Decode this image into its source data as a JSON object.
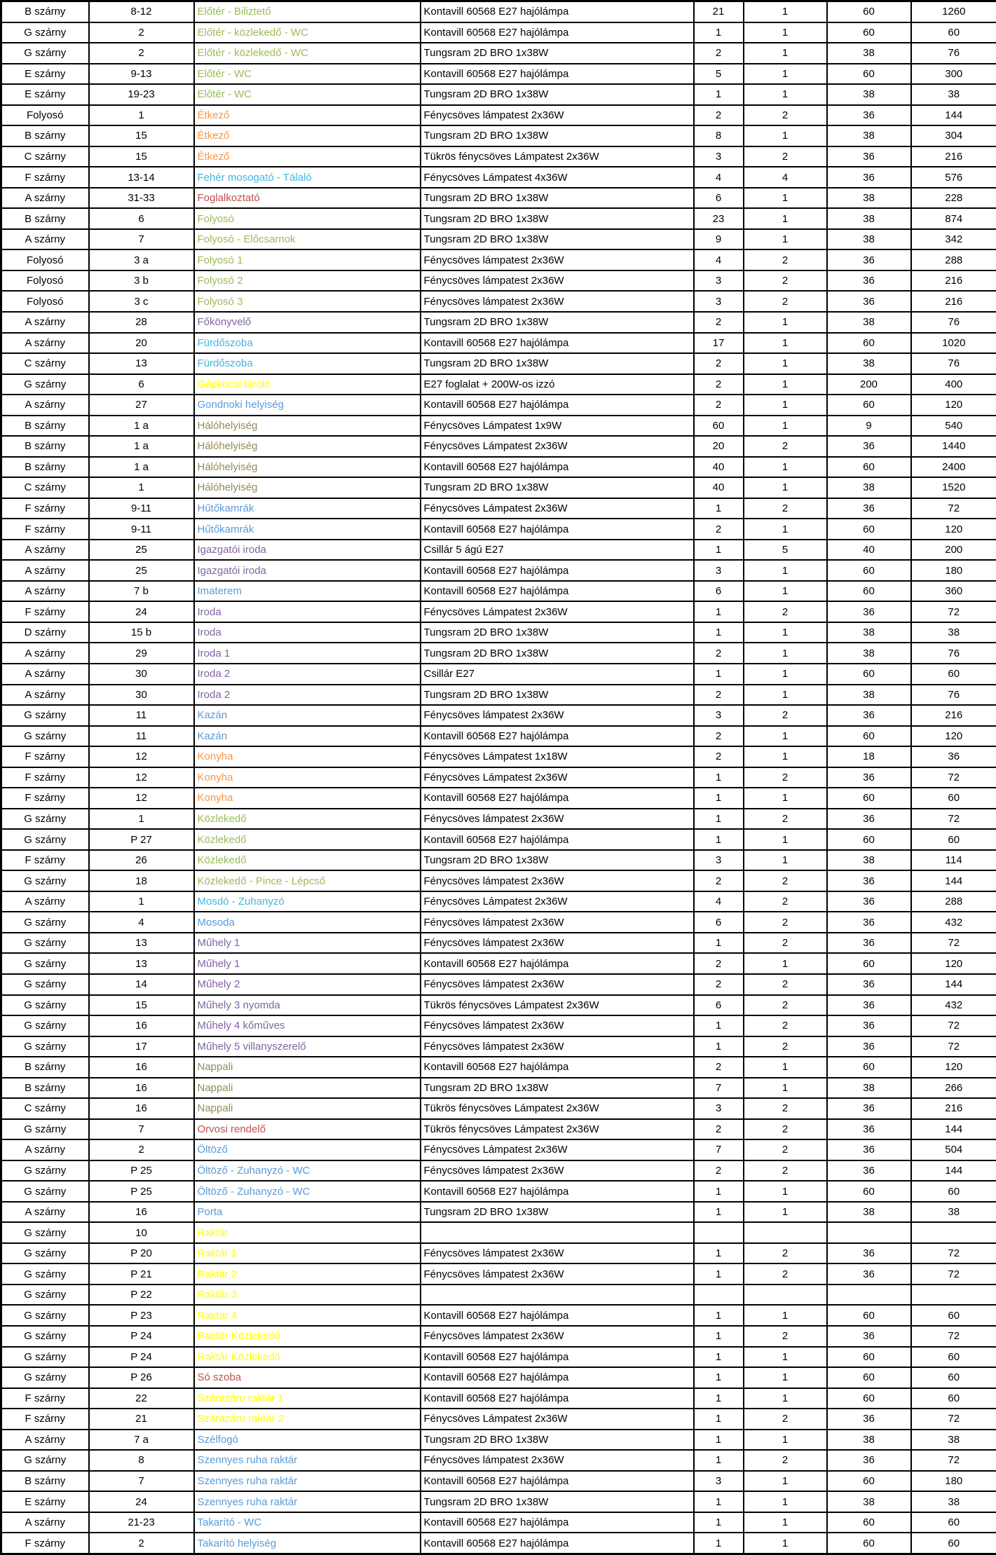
{
  "table": {
    "description": "Lighting inventory spreadsheet (Hungarian), no header row visible",
    "row_fields": [
      "wing",
      "room_number",
      "room_name",
      "room_name_color",
      "lamp_type",
      "fixture_count",
      "lamps_per_fixture",
      "watts_per_lamp",
      "total_watts"
    ],
    "colors": {
      "green": "#9BBB59",
      "orange": "#F79646",
      "cyan": "#45B5DE",
      "blue": "#5B9BD5",
      "purple": "#8064A2",
      "red": "#C0504D",
      "yellow": "#FFFF00",
      "tan": "#948A54",
      "grid_border": "#000000",
      "cell_text": "#000000",
      "background": "#FFFFFF"
    },
    "rows": [
      [
        "B szárny",
        "8-12",
        "Előtér - Biliztető",
        "green",
        "Kontavill 60568 E27 hajólámpa",
        "21",
        "1",
        "60",
        "1260"
      ],
      [
        "G szárny",
        "2",
        "Előtér - közlekedő - WC",
        "green",
        "Kontavill 60568 E27 hajólámpa",
        "1",
        "1",
        "60",
        "60"
      ],
      [
        "G szárny",
        "2",
        "Előtér - közlekedő - WC",
        "green",
        "Tungsram 2D BRO 1x38W",
        "2",
        "1",
        "38",
        "76"
      ],
      [
        "E szárny",
        "9-13",
        "Előtér - WC",
        "green",
        "Kontavill 60568 E27 hajólámpa",
        "5",
        "1",
        "60",
        "300"
      ],
      [
        "E szárny",
        "19-23",
        "Előtér - WC",
        "green",
        "Tungsram 2D BRO 1x38W",
        "1",
        "1",
        "38",
        "38"
      ],
      [
        "Folyosó",
        "1",
        "Étkező",
        "orange",
        "Fénycsöves lámpatest 2x36W",
        "2",
        "2",
        "36",
        "144"
      ],
      [
        "B szárny",
        "15",
        "Étkező",
        "orange",
        "Tungsram 2D BRO 1x38W",
        "8",
        "1",
        "38",
        "304"
      ],
      [
        "C szárny",
        "15",
        "Étkező",
        "orange",
        "Tükrös fénycsöves Lámpatest 2x36W",
        "3",
        "2",
        "36",
        "216"
      ],
      [
        "F szárny",
        "13-14",
        "Fehér mosogató - Tálaló",
        "cyan",
        "Fénycsöves Lámpatest 4x36W",
        "4",
        "4",
        "36",
        "576"
      ],
      [
        "A szárny",
        "31-33",
        "Foglalkoztató",
        "red",
        "Tungsram 2D BRO 1x38W",
        "6",
        "1",
        "38",
        "228"
      ],
      [
        "B szárny",
        "6",
        "Folyosó",
        "green",
        "Tungsram 2D BRO 1x38W",
        "23",
        "1",
        "38",
        "874"
      ],
      [
        "A szárny",
        "7",
        "Folyosó - Előcsarnok",
        "green",
        "Tungsram 2D BRO 1x38W",
        "9",
        "1",
        "38",
        "342"
      ],
      [
        "Folyosó",
        "3 a",
        "Folyosó 1",
        "green",
        "Fénycsöves lámpatest 2x36W",
        "4",
        "2",
        "36",
        "288"
      ],
      [
        "Folyosó",
        "3 b",
        "Folyosó 2",
        "green",
        "Fénycsöves lámpatest 2x36W",
        "3",
        "2",
        "36",
        "216"
      ],
      [
        "Folyosó",
        "3 c",
        "Folyosó 3",
        "green",
        "Fénycsöves lámpatest 2x36W",
        "3",
        "2",
        "36",
        "216"
      ],
      [
        "A szárny",
        "28",
        "Főkönyvelő",
        "purple",
        "Tungsram 2D BRO 1x38W",
        "2",
        "1",
        "38",
        "76"
      ],
      [
        "A szárny",
        "20",
        "Fürdőszoba",
        "cyan",
        "Kontavill 60568 E27 hajólámpa",
        "17",
        "1",
        "60",
        "1020"
      ],
      [
        "C szárny",
        "13",
        "Fürdőszoba",
        "cyan",
        "Tungsram 2D BRO 1x38W",
        "2",
        "1",
        "38",
        "76"
      ],
      [
        "G szárny",
        "6",
        "Gépkocsi tároló",
        "yellow",
        "E27 foglalat + 200W-os izzó",
        "2",
        "1",
        "200",
        "400"
      ],
      [
        "A szárny",
        "27",
        "Gondnoki helyiség",
        "blue",
        "Kontavill 60568 E27 hajólámpa",
        "2",
        "1",
        "60",
        "120"
      ],
      [
        "B szárny",
        "1 a",
        "Hálóhelyiség",
        "tan",
        "Fénycsöves Lámpatest 1x9W",
        "60",
        "1",
        "9",
        "540"
      ],
      [
        "B szárny",
        "1 a",
        "Hálóhelyiség",
        "tan",
        "Fénycsöves Lámpatest 2x36W",
        "20",
        "2",
        "36",
        "1440"
      ],
      [
        "B szárny",
        "1 a",
        "Hálóhelyiség",
        "tan",
        "Kontavill 60568 E27 hajólámpa",
        "40",
        "1",
        "60",
        "2400"
      ],
      [
        "C szárny",
        "1",
        "Hálóhelyiség",
        "tan",
        "Tungsram 2D BRO 1x38W",
        "40",
        "1",
        "38",
        "1520"
      ],
      [
        "F szárny",
        "9-11",
        "Hűtőkamrák",
        "blue",
        "Fénycsöves Lámpatest 2x36W",
        "1",
        "2",
        "36",
        "72"
      ],
      [
        "F szárny",
        "9-11",
        "Hűtőkamrák",
        "blue",
        "Kontavill 60568 E27 hajólámpa",
        "2",
        "1",
        "60",
        "120"
      ],
      [
        "A szárny",
        "25",
        "Igazgatói iroda",
        "purple",
        "Csillár 5 ágú E27",
        "1",
        "5",
        "40",
        "200"
      ],
      [
        "A szárny",
        "25",
        "Igazgatói iroda",
        "purple",
        "Kontavill 60568 E27 hajólámpa",
        "3",
        "1",
        "60",
        "180"
      ],
      [
        "A szárny",
        "7 b",
        "Imaterem",
        "blue",
        "Kontavill 60568 E27 hajólámpa",
        "6",
        "1",
        "60",
        "360"
      ],
      [
        "F szárny",
        "24",
        "Iroda",
        "purple",
        "Fénycsöves Lámpatest 2x36W",
        "1",
        "2",
        "36",
        "72"
      ],
      [
        "D szárny",
        "15 b",
        "Iroda",
        "purple",
        "Tungsram 2D BRO 1x38W",
        "1",
        "1",
        "38",
        "38"
      ],
      [
        "A szárny",
        "29",
        "Iroda 1",
        "purple",
        "Tungsram 2D BRO 1x38W",
        "2",
        "1",
        "38",
        "76"
      ],
      [
        "A szárny",
        "30",
        "Iroda 2",
        "purple",
        "Csillár E27",
        "1",
        "1",
        "60",
        "60"
      ],
      [
        "A szárny",
        "30",
        "Iroda 2",
        "purple",
        "Tungsram 2D BRO 1x38W",
        "2",
        "1",
        "38",
        "76"
      ],
      [
        "G szárny",
        "11",
        "Kazán",
        "blue",
        "Fénycsöves lámpatest 2x36W",
        "3",
        "2",
        "36",
        "216"
      ],
      [
        "G szárny",
        "11",
        "Kazán",
        "blue",
        "Kontavill 60568 E27 hajólámpa",
        "2",
        "1",
        "60",
        "120"
      ],
      [
        "F szárny",
        "12",
        "Konyha",
        "orange",
        "Fénycsöves Lámpatest 1x18W",
        "2",
        "1",
        "18",
        "36"
      ],
      [
        "F szárny",
        "12",
        "Konyha",
        "orange",
        "Fénycsöves Lámpatest 2x36W",
        "1",
        "2",
        "36",
        "72"
      ],
      [
        "F szárny",
        "12",
        "Konyha",
        "orange",
        "Kontavill 60568 E27 hajólámpa",
        "1",
        "1",
        "60",
        "60"
      ],
      [
        "G szárny",
        "1",
        "Közlekedő",
        "green",
        "Fénycsöves lámpatest 2x36W",
        "1",
        "2",
        "36",
        "72"
      ],
      [
        "G szárny",
        "P 27",
        "Közlekedő",
        "green",
        "Kontavill 60568 E27 hajólámpa",
        "1",
        "1",
        "60",
        "60"
      ],
      [
        "F szárny",
        "26",
        "Közlekedő",
        "green",
        "Tungsram 2D BRO 1x38W",
        "3",
        "1",
        "38",
        "114"
      ],
      [
        "G szárny",
        "18",
        "Közlekedő - Pince - Lépcső",
        "green",
        "Fénycsöves lámpatest 2x36W",
        "2",
        "2",
        "36",
        "144"
      ],
      [
        "A szárny",
        "1",
        "Mosdó - Zuhanyzó",
        "cyan",
        "Fénycsöves Lámpatest 2x36W",
        "4",
        "2",
        "36",
        "288"
      ],
      [
        "G szárny",
        "4",
        "Mosoda",
        "blue",
        "Fénycsöves lámpatest 2x36W",
        "6",
        "2",
        "36",
        "432"
      ],
      [
        "G szárny",
        "13",
        "Műhely 1",
        "purple",
        "Fénycsöves lámpatest 2x36W",
        "1",
        "2",
        "36",
        "72"
      ],
      [
        "G szárny",
        "13",
        "Műhely 1",
        "purple",
        "Kontavill 60568 E27 hajólámpa",
        "2",
        "1",
        "60",
        "120"
      ],
      [
        "G szárny",
        "14",
        "Műhely 2",
        "purple",
        "Fénycsöves lámpatest 2x36W",
        "2",
        "2",
        "36",
        "144"
      ],
      [
        "G szárny",
        "15",
        "Műhely 3 nyomda",
        "purple",
        "Tükrös fénycsöves Lámpatest 2x36W",
        "6",
        "2",
        "36",
        "432"
      ],
      [
        "G szárny",
        "16",
        "Műhely 4 kőműves",
        "purple",
        "Fénycsöves lámpatest 2x36W",
        "1",
        "2",
        "36",
        "72"
      ],
      [
        "G szárny",
        "17",
        "Műhely 5 villanyszerelő",
        "purple",
        "Fénycsöves lámpatest 2x36W",
        "1",
        "2",
        "36",
        "72"
      ],
      [
        "B szárny",
        "16",
        "Nappali",
        "tan",
        "Kontavill 60568 E27 hajólámpa",
        "2",
        "1",
        "60",
        "120"
      ],
      [
        "B szárny",
        "16",
        "Nappali",
        "tan",
        "Tungsram 2D BRO 1x38W",
        "7",
        "1",
        "38",
        "266"
      ],
      [
        "C szárny",
        "16",
        "Nappali",
        "tan",
        "Tükrös fénycsöves Lámpatest 2x36W",
        "3",
        "2",
        "36",
        "216"
      ],
      [
        "G szárny",
        "7",
        "Orvosi rendelő",
        "red",
        "Tükrös fénycsöves Lámpatest 2x36W",
        "2",
        "2",
        "36",
        "144"
      ],
      [
        "A szárny",
        "2",
        "Öltöző",
        "blue",
        "Fénycsöves Lámpatest 2x36W",
        "7",
        "2",
        "36",
        "504"
      ],
      [
        "G szárny",
        "P 25",
        "Öltöző - Zuhanyzó - WC",
        "blue",
        "Fénycsöves lámpatest 2x36W",
        "2",
        "2",
        "36",
        "144"
      ],
      [
        "G szárny",
        "P 25",
        "Öltöző - Zuhanyzó - WC",
        "blue",
        "Kontavill 60568 E27 hajólámpa",
        "1",
        "1",
        "60",
        "60"
      ],
      [
        "A szárny",
        "16",
        "Porta",
        "blue",
        "Tungsram 2D BRO 1x38W",
        "1",
        "1",
        "38",
        "38"
      ],
      [
        "G szárny",
        "10",
        "Raktár",
        "yellow",
        "",
        "",
        "",
        "",
        ""
      ],
      [
        "G szárny",
        "P 20",
        "Raktár 1",
        "yellow",
        "Fénycsöves lámpatest 2x36W",
        "1",
        "2",
        "36",
        "72"
      ],
      [
        "G szárny",
        "P 21",
        "Raktár 2",
        "yellow",
        "Fénycsöves lámpatest 2x36W",
        "1",
        "2",
        "36",
        "72"
      ],
      [
        "G szárny",
        "P 22",
        "Raktár 3",
        "yellow",
        "",
        "",
        "",
        "",
        ""
      ],
      [
        "G szárny",
        "P 23",
        "Raktár 4",
        "yellow",
        "Kontavill 60568 E27 hajólámpa",
        "1",
        "1",
        "60",
        "60"
      ],
      [
        "G szárny",
        "P 24",
        "Raktár Közlekedő",
        "yellow",
        "Fénycsöves lámpatest 2x36W",
        "1",
        "2",
        "36",
        "72"
      ],
      [
        "G szárny",
        "P 24",
        "Raktár Közlekedő",
        "yellow",
        "Kontavill 60568 E27 hajólámpa",
        "1",
        "1",
        "60",
        "60"
      ],
      [
        "G szárny",
        "P 26",
        "Só szoba",
        "red",
        "Kontavill 60568 E27 hajólámpa",
        "1",
        "1",
        "60",
        "60"
      ],
      [
        "F szárny",
        "22",
        "Szárazáru raktár 1",
        "yellow",
        "Kontavill 60568 E27 hajólámpa",
        "1",
        "1",
        "60",
        "60"
      ],
      [
        "F szárny",
        "21",
        "Szárazáru raktár 2",
        "yellow",
        "Fénycsöves Lámpatest 2x36W",
        "1",
        "2",
        "36",
        "72"
      ],
      [
        "A szárny",
        "7 a",
        "Szélfogó",
        "blue",
        "Tungsram 2D BRO 1x38W",
        "1",
        "1",
        "38",
        "38"
      ],
      [
        "G szárny",
        "8",
        "Szennyes ruha raktár",
        "blue",
        "Fénycsöves lámpatest 2x36W",
        "1",
        "2",
        "36",
        "72"
      ],
      [
        "B szárny",
        "7",
        "Szennyes ruha raktár",
        "blue",
        "Kontavill 60568 E27 hajólámpa",
        "3",
        "1",
        "60",
        "180"
      ],
      [
        "E szárny",
        "24",
        "Szennyes ruha raktár",
        "blue",
        "Tungsram 2D BRO 1x38W",
        "1",
        "1",
        "38",
        "38"
      ],
      [
        "A szárny",
        "21-23",
        "Takarító - WC",
        "blue",
        "Kontavill 60568 E27 hajólámpa",
        "1",
        "1",
        "60",
        "60"
      ],
      [
        "F szárny",
        "2",
        "Takarító helyiség",
        "blue",
        "Kontavill 60568 E27 hajólámpa",
        "1",
        "1",
        "60",
        "60"
      ]
    ]
  }
}
